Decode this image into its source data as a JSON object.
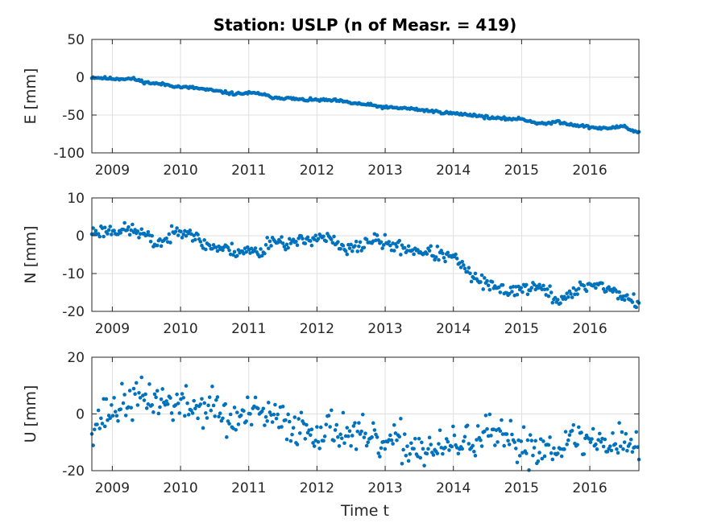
{
  "chart_data": {
    "type": "scatter",
    "title": "Station: USLP (n of Measr. = 419)",
    "xlabel": "Time t",
    "x_ticks": [
      "2009",
      "2010",
      "2011",
      "2012",
      "2013",
      "2014",
      "2015",
      "2016"
    ],
    "xlim": [
      2008.7,
      2016.72
    ],
    "grid": true,
    "marker_color": "#0072BD",
    "panels": [
      {
        "name": "E",
        "ylabel": "E [mm]",
        "ylim": [
          -100,
          50
        ],
        "y_ticks": [
          50,
          0,
          -50,
          -100
        ],
        "trend": [
          [
            2008.7,
            0
          ],
          [
            2009.0,
            -2
          ],
          [
            2009.3,
            -2
          ],
          [
            2009.5,
            -7
          ],
          [
            2009.8,
            -10
          ],
          [
            2010.0,
            -13
          ],
          [
            2010.2,
            -14
          ],
          [
            2010.5,
            -18
          ],
          [
            2010.8,
            -22
          ],
          [
            2011.0,
            -21
          ],
          [
            2011.2,
            -22
          ],
          [
            2011.3,
            -26
          ],
          [
            2011.6,
            -28
          ],
          [
            2011.8,
            -30
          ],
          [
            2012.0,
            -30
          ],
          [
            2012.3,
            -31
          ],
          [
            2012.5,
            -34
          ],
          [
            2012.8,
            -37
          ],
          [
            2013.0,
            -40
          ],
          [
            2013.3,
            -41
          ],
          [
            2013.5,
            -43
          ],
          [
            2013.7,
            -45
          ],
          [
            2014.0,
            -48
          ],
          [
            2014.3,
            -50
          ],
          [
            2014.5,
            -53
          ],
          [
            2014.7,
            -55
          ],
          [
            2015.0,
            -55
          ],
          [
            2015.2,
            -60
          ],
          [
            2015.4,
            -62
          ],
          [
            2015.5,
            -58
          ],
          [
            2015.7,
            -62
          ],
          [
            2016.0,
            -66
          ],
          [
            2016.2,
            -68
          ],
          [
            2016.4,
            -66
          ],
          [
            2016.5,
            -64
          ],
          [
            2016.6,
            -70
          ],
          [
            2016.72,
            -73
          ]
        ],
        "noise": 0.9,
        "seed": 11
      },
      {
        "name": "N",
        "ylabel": "N [mm]",
        "ylim": [
          -20,
          10
        ],
        "y_ticks": [
          10,
          0,
          -10,
          -20
        ],
        "trend": [
          [
            2008.7,
            1
          ],
          [
            2009.0,
            1.5
          ],
          [
            2009.3,
            1.5
          ],
          [
            2009.5,
            0
          ],
          [
            2009.6,
            -2
          ],
          [
            2009.8,
            -1
          ],
          [
            2010.0,
            2
          ],
          [
            2010.15,
            1
          ],
          [
            2010.3,
            -2
          ],
          [
            2010.5,
            -3
          ],
          [
            2010.8,
            -4
          ],
          [
            2011.0,
            -4
          ],
          [
            2011.2,
            -4.5
          ],
          [
            2011.3,
            -1
          ],
          [
            2011.6,
            -2
          ],
          [
            2011.8,
            -1.5
          ],
          [
            2012.0,
            0
          ],
          [
            2012.2,
            -1
          ],
          [
            2012.4,
            -4
          ],
          [
            2012.6,
            -3
          ],
          [
            2012.8,
            -1
          ],
          [
            2013.0,
            -2
          ],
          [
            2013.2,
            -3
          ],
          [
            2013.5,
            -4
          ],
          [
            2013.8,
            -5
          ],
          [
            2014.0,
            -6
          ],
          [
            2014.1,
            -7
          ],
          [
            2014.2,
            -10
          ],
          [
            2014.4,
            -12
          ],
          [
            2014.6,
            -14
          ],
          [
            2014.8,
            -14.5
          ],
          [
            2015.0,
            -14
          ],
          [
            2015.2,
            -13.5
          ],
          [
            2015.4,
            -15
          ],
          [
            2015.5,
            -17
          ],
          [
            2015.7,
            -16
          ],
          [
            2015.9,
            -13.5
          ],
          [
            2016.1,
            -12.5
          ],
          [
            2016.3,
            -14.5
          ],
          [
            2016.5,
            -16
          ],
          [
            2016.6,
            -17
          ],
          [
            2016.72,
            -18
          ]
        ],
        "noise": 0.9,
        "seed": 23
      },
      {
        "name": "U",
        "ylabel": "U [mm]",
        "ylim": [
          -20,
          20
        ],
        "y_ticks": [
          20,
          0,
          -20
        ],
        "trend": [
          [
            2008.7,
            -4
          ],
          [
            2008.9,
            0
          ],
          [
            2009.2,
            4
          ],
          [
            2009.5,
            6
          ],
          [
            2009.8,
            4
          ],
          [
            2010.0,
            3
          ],
          [
            2010.3,
            2
          ],
          [
            2010.5,
            3
          ],
          [
            2010.7,
            -3
          ],
          [
            2010.9,
            -1
          ],
          [
            2011.2,
            0
          ],
          [
            2011.5,
            -3
          ],
          [
            2011.8,
            -5
          ],
          [
            2012.0,
            -6
          ],
          [
            2012.3,
            -5
          ],
          [
            2012.6,
            -8
          ],
          [
            2012.9,
            -11
          ],
          [
            2013.2,
            -10
          ],
          [
            2013.5,
            -12
          ],
          [
            2013.8,
            -13
          ],
          [
            2014.0,
            -11
          ],
          [
            2014.3,
            -9
          ],
          [
            2014.5,
            -7
          ],
          [
            2014.8,
            -10
          ],
          [
            2015.0,
            -11
          ],
          [
            2015.3,
            -12
          ],
          [
            2015.6,
            -10
          ],
          [
            2015.9,
            -9
          ],
          [
            2016.2,
            -10
          ],
          [
            2016.5,
            -9
          ],
          [
            2016.72,
            -12
          ]
        ],
        "noise": 3.3,
        "seed": 37
      }
    ],
    "n_points": 419
  }
}
